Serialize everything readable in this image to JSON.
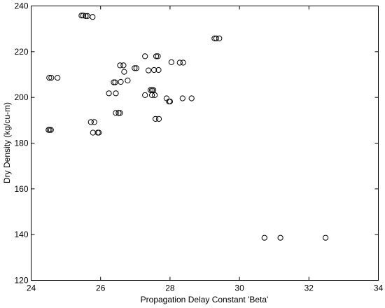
{
  "chart_data": {
    "type": "scatter",
    "title": "",
    "xlabel": "Propagation Delay Constant 'Beta'",
    "ylabel": "Dry Density (kg/cu-m)",
    "xlim": [
      24,
      34
    ],
    "ylim": [
      120,
      240
    ],
    "xticks": [
      24,
      26,
      28,
      30,
      32,
      34
    ],
    "yticks": [
      120,
      140,
      160,
      180,
      200,
      220,
      240
    ],
    "grid": false,
    "marker": "open-circle",
    "points": [
      {
        "x": 25.45,
        "y": 235.8
      },
      {
        "x": 25.5,
        "y": 235.8
      },
      {
        "x": 25.57,
        "y": 235.6
      },
      {
        "x": 25.62,
        "y": 235.6
      },
      {
        "x": 25.77,
        "y": 235.2
      },
      {
        "x": 29.28,
        "y": 225.8
      },
      {
        "x": 29.33,
        "y": 225.8
      },
      {
        "x": 29.42,
        "y": 225.8
      },
      {
        "x": 27.28,
        "y": 218.0
      },
      {
        "x": 27.6,
        "y": 218.0
      },
      {
        "x": 27.65,
        "y": 218.0
      },
      {
        "x": 28.04,
        "y": 215.4
      },
      {
        "x": 28.28,
        "y": 215.2
      },
      {
        "x": 28.38,
        "y": 215.2
      },
      {
        "x": 26.56,
        "y": 214.0
      },
      {
        "x": 26.66,
        "y": 214.0
      },
      {
        "x": 26.98,
        "y": 212.8
      },
      {
        "x": 27.03,
        "y": 212.8
      },
      {
        "x": 26.68,
        "y": 211.2
      },
      {
        "x": 27.38,
        "y": 211.8
      },
      {
        "x": 27.54,
        "y": 212.0
      },
      {
        "x": 27.67,
        "y": 212.0
      },
      {
        "x": 24.52,
        "y": 208.6
      },
      {
        "x": 24.58,
        "y": 208.6
      },
      {
        "x": 24.76,
        "y": 208.6
      },
      {
        "x": 26.78,
        "y": 207.4
      },
      {
        "x": 26.38,
        "y": 206.6
      },
      {
        "x": 26.42,
        "y": 206.6
      },
      {
        "x": 26.58,
        "y": 206.8
      },
      {
        "x": 27.44,
        "y": 203.2
      },
      {
        "x": 27.48,
        "y": 203.2
      },
      {
        "x": 27.52,
        "y": 203.2
      },
      {
        "x": 26.24,
        "y": 201.8
      },
      {
        "x": 26.44,
        "y": 201.8
      },
      {
        "x": 27.28,
        "y": 201.0
      },
      {
        "x": 27.48,
        "y": 201.0
      },
      {
        "x": 27.56,
        "y": 201.0
      },
      {
        "x": 27.9,
        "y": 199.6
      },
      {
        "x": 28.36,
        "y": 199.6
      },
      {
        "x": 28.62,
        "y": 199.6
      },
      {
        "x": 27.97,
        "y": 198.2
      },
      {
        "x": 28.0,
        "y": 198.2
      },
      {
        "x": 26.44,
        "y": 193.2
      },
      {
        "x": 26.52,
        "y": 193.2
      },
      {
        "x": 26.56,
        "y": 193.2
      },
      {
        "x": 27.58,
        "y": 190.6
      },
      {
        "x": 27.68,
        "y": 190.6
      },
      {
        "x": 25.72,
        "y": 189.2
      },
      {
        "x": 25.82,
        "y": 189.2
      },
      {
        "x": 24.5,
        "y": 185.8
      },
      {
        "x": 24.53,
        "y": 185.8
      },
      {
        "x": 24.57,
        "y": 185.8
      },
      {
        "x": 25.78,
        "y": 184.6
      },
      {
        "x": 25.92,
        "y": 184.6
      },
      {
        "x": 25.95,
        "y": 184.6
      },
      {
        "x": 30.72,
        "y": 138.6
      },
      {
        "x": 31.18,
        "y": 138.6
      },
      {
        "x": 32.48,
        "y": 138.6
      }
    ]
  }
}
